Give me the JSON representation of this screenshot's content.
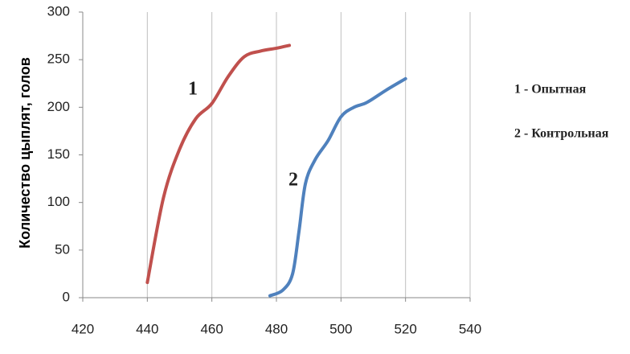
{
  "chart_data": {
    "type": "line",
    "y_label": "Количество цыплят, голов",
    "xlim": [
      420,
      540
    ],
    "xticks": [
      420,
      440,
      460,
      480,
      500,
      520,
      540
    ],
    "ylim": [
      0,
      300
    ],
    "yticks": [
      0,
      50,
      100,
      150,
      200,
      250,
      300
    ],
    "grid": "x",
    "series": [
      {
        "name": "1 - Опытная",
        "color": "#c0504d",
        "x": [
          440,
          445,
          450,
          455,
          460,
          465,
          470,
          475,
          480,
          484
        ],
        "values": [
          16,
          105,
          156,
          188,
          204,
          232,
          253,
          259,
          262,
          265
        ]
      },
      {
        "name": "2 - Контрольная",
        "color": "#4f81bd",
        "x": [
          478,
          482,
          485,
          487,
          489,
          492,
          496,
          500,
          504,
          508,
          514,
          520
        ],
        "values": [
          2,
          8,
          25,
          70,
          120,
          145,
          165,
          190,
          200,
          205,
          218,
          230
        ]
      }
    ],
    "annotations": [
      "1",
      "2"
    ]
  }
}
